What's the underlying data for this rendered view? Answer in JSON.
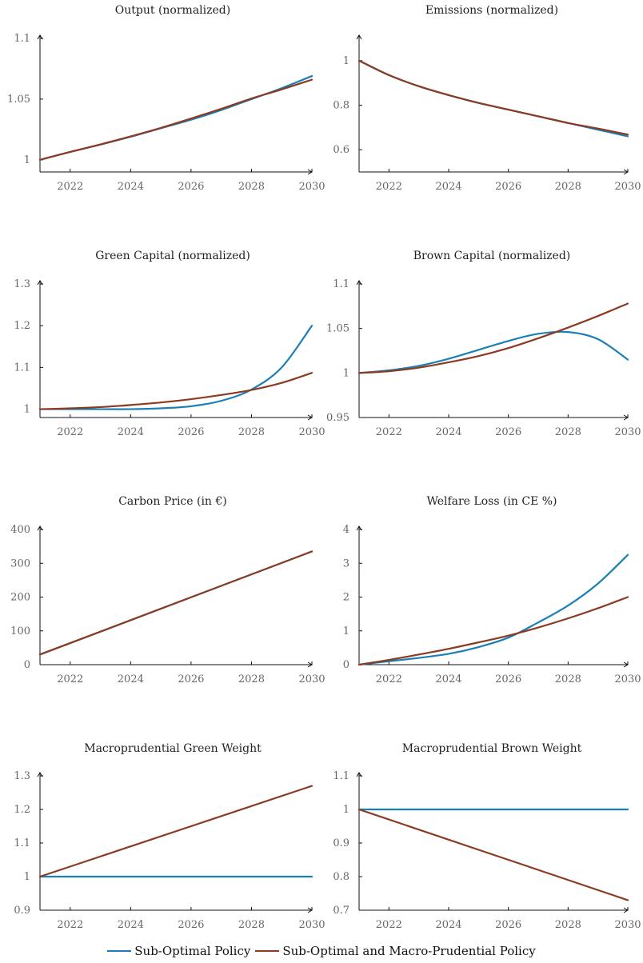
{
  "colors": {
    "sub_optimal": "#1a7fb5",
    "macro_prudential": "#8c3a22"
  },
  "legend": {
    "sub_optimal_label": "Sub-Optimal Policy",
    "macro_prudential_label": "Sub-Optimal and Macro-Prudential Policy"
  },
  "chart_data": [
    {
      "type": "line",
      "title": "Output (normalized)",
      "x": [
        2021,
        2022,
        2023,
        2024,
        2025,
        2026,
        2027,
        2028,
        2029,
        2030
      ],
      "xticks": [
        2022,
        2024,
        2026,
        2028,
        2030
      ],
      "xlim": [
        2021,
        2030
      ],
      "ylim": [
        0.99,
        1.1
      ],
      "yticks": [
        1,
        1.05,
        1.1
      ],
      "ytick_labels": [
        "1",
        "1.05",
        "1.1"
      ],
      "series": [
        {
          "name": "Sub-Optimal Policy",
          "values": [
            1.0,
            1.0065,
            1.0125,
            1.019,
            1.026,
            1.033,
            1.041,
            1.05,
            1.059,
            1.069
          ]
        },
        {
          "name": "Sub-Optimal and Macro-Prudential Policy",
          "values": [
            1.0,
            1.0065,
            1.0127,
            1.0193,
            1.0263,
            1.034,
            1.042,
            1.0505,
            1.058,
            1.066
          ]
        }
      ]
    },
    {
      "type": "line",
      "title": "Emissions (normalized)",
      "x": [
        2021,
        2022,
        2023,
        2024,
        2025,
        2026,
        2027,
        2028,
        2029,
        2030
      ],
      "xticks": [
        2022,
        2024,
        2026,
        2028,
        2030
      ],
      "xlim": [
        2021,
        2030
      ],
      "ylim": [
        0.5,
        1.1
      ],
      "yticks": [
        0.6,
        0.8,
        1
      ],
      "ytick_labels": [
        "0.6",
        "0.8",
        "1"
      ],
      "series": [
        {
          "name": "Sub-Optimal Policy",
          "values": [
            1.0,
            0.935,
            0.885,
            0.845,
            0.81,
            0.78,
            0.75,
            0.72,
            0.69,
            0.66
          ]
        },
        {
          "name": "Sub-Optimal and Macro-Prudential Policy",
          "values": [
            1.0,
            0.935,
            0.885,
            0.845,
            0.81,
            0.78,
            0.75,
            0.72,
            0.695,
            0.668
          ]
        }
      ]
    },
    {
      "type": "line",
      "title": "Green Capital (normalized)",
      "x": [
        2021,
        2022,
        2023,
        2024,
        2025,
        2026,
        2027,
        2028,
        2029,
        2030
      ],
      "xticks": [
        2022,
        2024,
        2026,
        2028,
        2030
      ],
      "xlim": [
        2021,
        2030
      ],
      "ylim": [
        0.98,
        1.3
      ],
      "yticks": [
        1,
        1.1,
        1.2,
        1.3
      ],
      "ytick_labels": [
        "1",
        "1.1",
        "1.2",
        "1.3"
      ],
      "series": [
        {
          "name": "Sub-Optimal Policy",
          "values": [
            1.0,
            1.0,
            1.0,
            1.0,
            1.002,
            1.007,
            1.02,
            1.047,
            1.1,
            1.2
          ]
        },
        {
          "name": "Sub-Optimal and Macro-Prudential Policy",
          "values": [
            1.0,
            1.002,
            1.005,
            1.01,
            1.016,
            1.024,
            1.034,
            1.046,
            1.063,
            1.087
          ]
        }
      ]
    },
    {
      "type": "line",
      "title": "Brown Capital (normalized)",
      "x": [
        2021,
        2022,
        2023,
        2024,
        2025,
        2026,
        2027,
        2028,
        2029,
        2030
      ],
      "xticks": [
        2022,
        2024,
        2026,
        2028,
        2030
      ],
      "xlim": [
        2021,
        2030
      ],
      "ylim": [
        0.95,
        1.1
      ],
      "yticks": [
        0.95,
        1,
        1.05,
        1.1
      ],
      "ytick_labels": [
        "0.95",
        "1",
        "1.05",
        "1.1"
      ],
      "series": [
        {
          "name": "Sub-Optimal Policy",
          "values": [
            1.0,
            1.003,
            1.008,
            1.016,
            1.026,
            1.036,
            1.044,
            1.046,
            1.038,
            1.015
          ]
        },
        {
          "name": "Sub-Optimal and Macro-Prudential Policy",
          "values": [
            1.0,
            1.002,
            1.006,
            1.012,
            1.019,
            1.028,
            1.039,
            1.051,
            1.064,
            1.078
          ]
        }
      ]
    },
    {
      "type": "line",
      "title": "Carbon Price (in €)",
      "x": [
        2021,
        2030
      ],
      "xticks": [
        2022,
        2024,
        2026,
        2028,
        2030
      ],
      "xlim": [
        2021,
        2030
      ],
      "ylim": [
        0,
        400
      ],
      "yticks": [
        0,
        100,
        200,
        300,
        400
      ],
      "ytick_labels": [
        "0",
        "100",
        "200",
        "300",
        "400"
      ],
      "series": [
        {
          "name": "Sub-Optimal Policy",
          "values": [
            30,
            335
          ]
        },
        {
          "name": "Sub-Optimal and Macro-Prudential Policy",
          "values": [
            30,
            335
          ]
        }
      ]
    },
    {
      "type": "line",
      "title": "Welfare Loss (in CE %)",
      "x": [
        2021,
        2022,
        2023,
        2024,
        2025,
        2026,
        2027,
        2028,
        2029,
        2030
      ],
      "xticks": [
        2022,
        2024,
        2026,
        2028,
        2030
      ],
      "xlim": [
        2021,
        2030
      ],
      "ylim": [
        0,
        4
      ],
      "yticks": [
        0,
        1,
        2,
        3,
        4
      ],
      "ytick_labels": [
        "0",
        "1",
        "2",
        "3",
        "4"
      ],
      "series": [
        {
          "name": "Sub-Optimal Policy",
          "values": [
            0.0,
            0.1,
            0.2,
            0.32,
            0.52,
            0.8,
            1.25,
            1.75,
            2.4,
            3.25
          ]
        },
        {
          "name": "Sub-Optimal and Macro-Prudential Policy",
          "values": [
            0.0,
            0.14,
            0.3,
            0.47,
            0.66,
            0.86,
            1.1,
            1.37,
            1.67,
            2.0
          ]
        }
      ]
    },
    {
      "type": "line",
      "title": "Macroprudential Green Weight",
      "x": [
        2021,
        2030
      ],
      "xticks": [
        2022,
        2024,
        2026,
        2028,
        2030
      ],
      "xlim": [
        2021,
        2030
      ],
      "ylim": [
        0.9,
        1.3
      ],
      "yticks": [
        0.9,
        1,
        1.1,
        1.2,
        1.3
      ],
      "ytick_labels": [
        "0.9",
        "1",
        "1.1",
        "1.2",
        "1.3"
      ],
      "series": [
        {
          "name": "Sub-Optimal Policy",
          "values": [
            1.0,
            1.0
          ]
        },
        {
          "name": "Sub-Optimal and Macro-Prudential Policy",
          "values": [
            1.0,
            1.27
          ]
        }
      ]
    },
    {
      "type": "line",
      "title": "Macroprudential Brown Weight",
      "x": [
        2021,
        2030
      ],
      "xticks": [
        2022,
        2024,
        2026,
        2028,
        2030
      ],
      "xlim": [
        2021,
        2030
      ],
      "ylim": [
        0.7,
        1.1
      ],
      "yticks": [
        0.7,
        0.8,
        0.9,
        1,
        1.1
      ],
      "ytick_labels": [
        "0.7",
        "0.8",
        "0.9",
        "1",
        "1.1"
      ],
      "series": [
        {
          "name": "Sub-Optimal Policy",
          "values": [
            1.0,
            1.0
          ]
        },
        {
          "name": "Sub-Optimal and Macro-Prudential Policy",
          "values": [
            1.0,
            0.73
          ]
        }
      ]
    }
  ]
}
